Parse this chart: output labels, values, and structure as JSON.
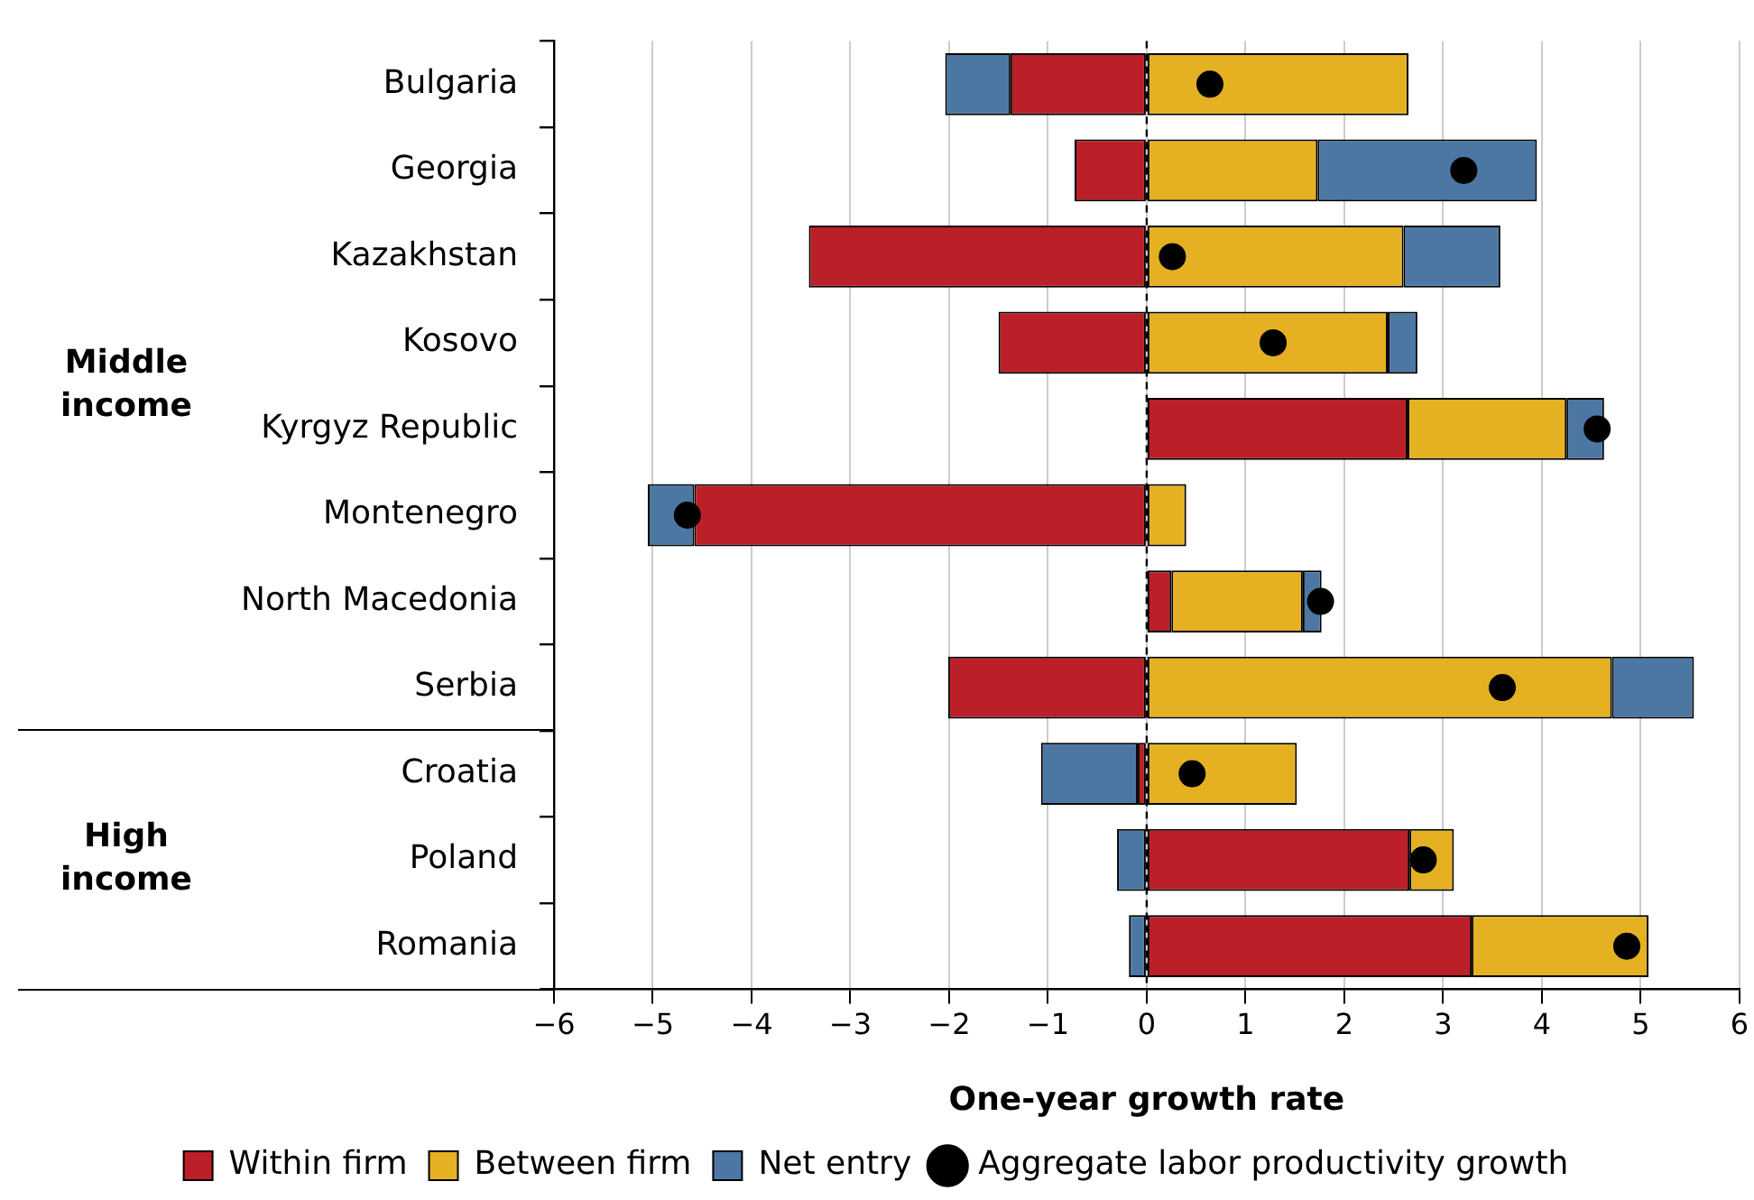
{
  "chart_data": {
    "type": "bar",
    "orientation": "horizontal",
    "stacked": true,
    "categories": [
      "Bulgaria",
      "Georgia",
      "Kazakhstan",
      "Kosovo",
      "Kyrgyz Republic",
      "Montenegro",
      "North Macedonia",
      "Serbia",
      "Croatia",
      "Poland",
      "Romania"
    ],
    "series": [
      {
        "name": "Within firm",
        "color": "#bb1f28",
        "values": [
          -1.38,
          -0.73,
          -3.42,
          -1.5,
          2.64,
          -4.58,
          0.25,
          -2.01,
          -0.09,
          2.66,
          3.29
        ]
      },
      {
        "name": "Between firm",
        "color": "#e5b022",
        "values": [
          2.65,
          1.73,
          2.6,
          2.44,
          1.61,
          0.4,
          1.33,
          4.71,
          1.52,
          0.45,
          1.79
        ]
      },
      {
        "name": "Net entry",
        "color": "#4d77a3",
        "values": [
          -0.66,
          2.22,
          0.98,
          0.3,
          0.38,
          -0.47,
          0.19,
          0.83,
          -0.98,
          -0.3,
          -0.18
        ]
      },
      {
        "name": "Aggregate labor productivity growth",
        "type": "scatter",
        "color": "#000000",
        "marker": "circle",
        "x": [
          "Bulgaria",
          "Georgia",
          "Kazakhstan",
          "Kosovo",
          "Kyrgyz Republic",
          "Montenegro",
          "North Macedonia",
          "Serbia",
          "Croatia",
          "Poland",
          "Romania"
        ],
        "values": [
          0.64,
          3.21,
          0.26,
          1.28,
          4.56,
          -4.65,
          1.76,
          3.6,
          0.46,
          2.8,
          4.86
        ]
      }
    ],
    "xlabel": "One-year growth rate",
    "xlim": [
      -6,
      6
    ],
    "xticks": [
      {
        "value": -6,
        "label": "−6"
      },
      {
        "value": -5,
        "label": "−5"
      },
      {
        "value": -4,
        "label": "−4"
      },
      {
        "value": -3,
        "label": "−3"
      },
      {
        "value": -2,
        "label": "−2"
      },
      {
        "value": -1,
        "label": "−1"
      },
      0,
      1,
      2,
      3,
      4,
      5,
      6
    ],
    "grid": "x",
    "legend": "bottom",
    "ref_lines": [
      {
        "axis": "x",
        "value": 0,
        "color": "#000000",
        "line_style": "dashed"
      }
    ],
    "annotations": [
      "Middle income",
      "High income"
    ]
  }
}
